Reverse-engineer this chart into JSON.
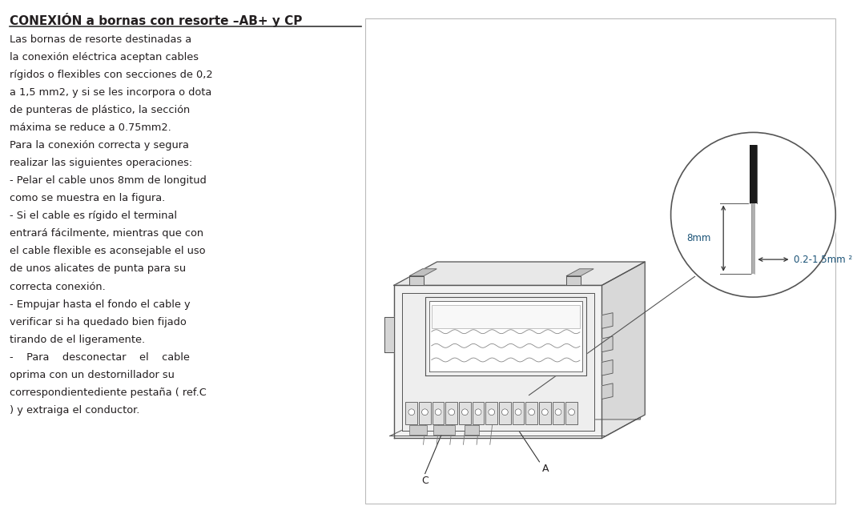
{
  "title": "CONEXIÓN a bornas con resorte –AB+ y CP",
  "background_color": "#ffffff",
  "text_color": "#231f20",
  "body_lines": [
    "Las bornas de resorte destinadas a",
    "la conexión eléctrica aceptan cables",
    "rígidos o flexibles con secciones de 0,2",
    "a 1,5 mm2, y si se les incorpora o dota",
    "de punteras de plástico, la sección",
    "máxima se reduce a 0.75mm2.",
    "Para la conexión correcta y segura",
    "realizar las siguientes operaciones:",
    "- Pelar el cable unos 8mm de longitud",
    "como se muestra en la figura.",
    "- Si el cable es rígido el terminal",
    "entrará fácilmente, mientras que con",
    "el cable flexible es aconsejable el uso",
    "de unos alicates de punta para su",
    "correcta conexión.",
    "- Empujar hasta el fondo el cable y",
    "verificar si ha quedado bien fijado",
    "tirando de el ligeramente.",
    "-    Para    desconectar    el    cable",
    "oprima con un destornillador su",
    "correspondientediente pestaña ( ref.C",
    ") y extraiga el conductor."
  ],
  "label_A": "A",
  "label_C": "C",
  "dim_8mm": "8mm",
  "dim_cable": "0.2-1.5mm ²",
  "line_color": "#555555",
  "dim_text_color": "#1a5276",
  "panel_border": "#aaaaaa"
}
